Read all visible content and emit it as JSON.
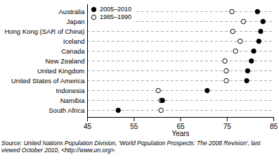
{
  "chart_data": {
    "type": "dot",
    "orientation": "horizontal",
    "categories": [
      "Australia",
      "Japan",
      "Hong Kong (SAR of China)",
      "Iceland",
      "Canada",
      "New Zealand",
      "United Kingdom",
      "United States of America",
      "Indonesia",
      "Namibia",
      "South Africa"
    ],
    "series": [
      {
        "name": "1985–1990",
        "color": "#000000",
        "marker": "circle-open",
        "values": [
          76.0,
          78.5,
          76.2,
          77.8,
          76.8,
          74.5,
          74.8,
          74.8,
          60.2,
          60.8,
          60.8
        ]
      },
      {
        "name": "2005–2010",
        "color": "#000000",
        "marker": "circle",
        "values": [
          81.5,
          82.7,
          82.2,
          81.8,
          80.7,
          80.2,
          79.4,
          79.2,
          70.7,
          61.1,
          51.6
        ]
      }
    ],
    "x_label": "Years",
    "xlim": [
      45,
      85
    ],
    "xticks": [
      45,
      55,
      65,
      75,
      85
    ],
    "grid": true,
    "legend": "top-left",
    "caption": "Source: United Nations Population Division, 'World Population Prospects: The 2008 Revision', last viewed October 2010, <http://www.un.org>."
  }
}
